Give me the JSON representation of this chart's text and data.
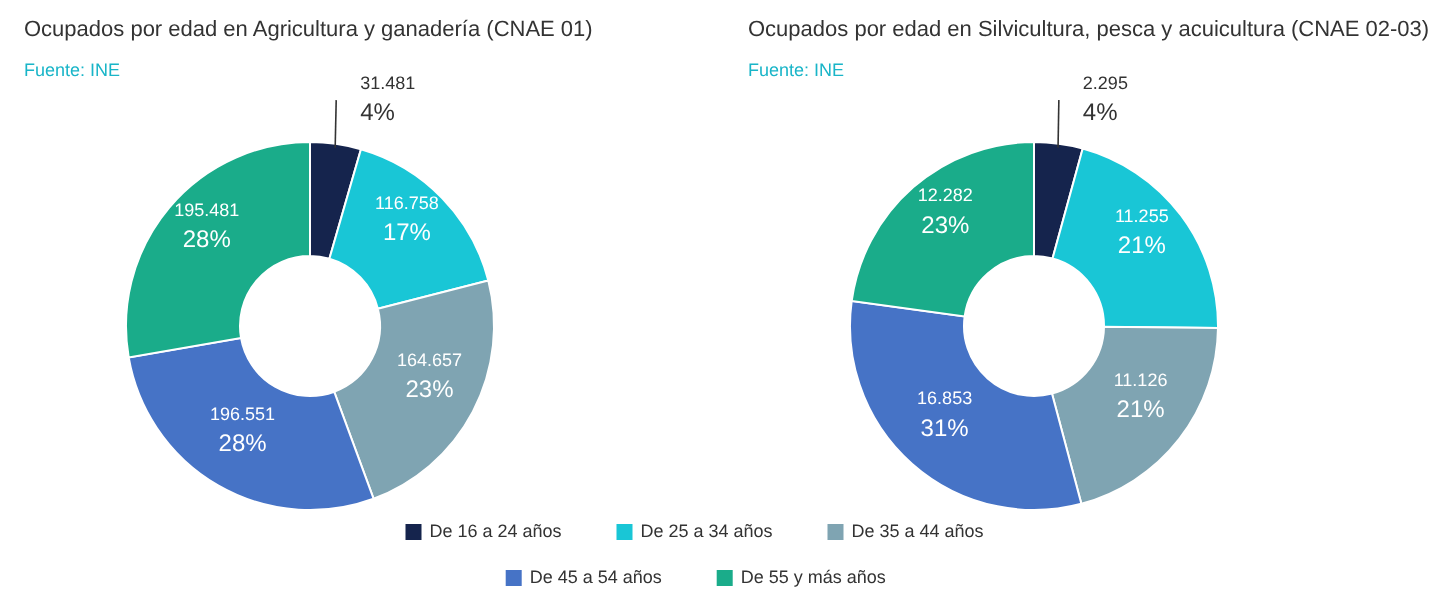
{
  "chart_data": [
    {
      "type": "donut",
      "title": "Ocupados por edad en Agricultura y ganadería (CNAE 01)",
      "annotations": [
        "Fuente: INE"
      ],
      "categories": [
        "De 16 a 24 años",
        "De 25 a 34 años",
        "De 35 a 44 años",
        "De 45 a 54 años",
        "De 55 y más años"
      ],
      "values": [
        31481,
        116758,
        164657,
        196551,
        195481
      ],
      "value_labels": [
        "31.481\n4%",
        "116.758\n17%",
        "164.657\n23%",
        "196.551\n28%",
        "195.481\n28%"
      ],
      "colors": [
        "#15244d",
        "#19c6d6",
        "#7fa4b2",
        "#4673c6",
        "#1aac8a"
      ],
      "legend": "bottom"
    },
    {
      "type": "donut",
      "title": "Ocupados por edad en Silvicultura, pesca y acuicultura (CNAE 02-03)",
      "annotations": [
        "Fuente: INE"
      ],
      "values": [
        2295,
        11255,
        11126,
        16853,
        12282
      ],
      "categories": [
        null,
        null,
        null,
        null,
        null
      ],
      "value_labels": [
        "2.295\n4%",
        "11.255\n21%",
        "11.126\n21%",
        "16.853\n31%",
        "12.282\n23%"
      ],
      "colors": [
        "#15244d",
        "#19c6d6",
        "#7fa4b2",
        "#4673c6",
        "#1aac8a"
      ]
    }
  ]
}
